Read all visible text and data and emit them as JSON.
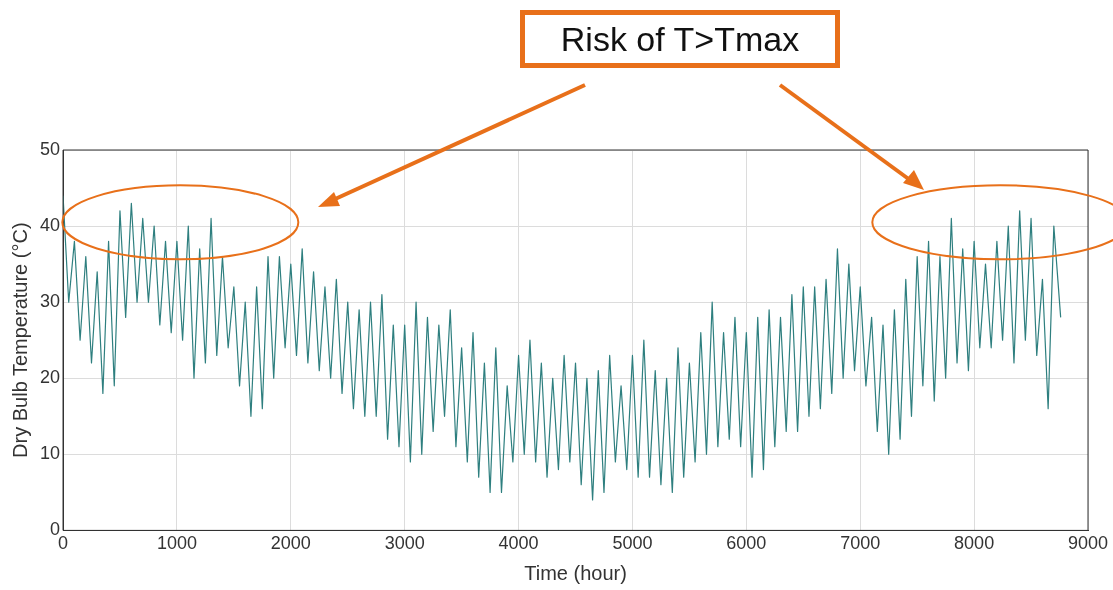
{
  "chart_data": {
    "type": "line",
    "xlabel": "Time (hour)",
    "ylabel": "Dry Bulb Temperature (°C)",
    "annotations": [
      "Risk of T>Tmax"
    ],
    "xlim": [
      0,
      9000
    ],
    "xticks": [
      0,
      1000,
      2000,
      3000,
      4000,
      5000,
      6000,
      7000,
      8000,
      9000
    ],
    "ylim": [
      0,
      50
    ],
    "yticks": [
      0,
      10,
      20,
      30,
      40,
      50
    ],
    "grid": true,
    "marker": "none",
    "line_style": "solid",
    "x": [
      0,
      50,
      100,
      150,
      200,
      250,
      300,
      350,
      400,
      450,
      500,
      550,
      600,
      650,
      700,
      750,
      800,
      850,
      900,
      950,
      1000,
      1050,
      1100,
      1150,
      1200,
      1250,
      1300,
      1350,
      1400,
      1450,
      1500,
      1550,
      1600,
      1650,
      1700,
      1750,
      1800,
      1850,
      1900,
      1950,
      2000,
      2050,
      2100,
      2150,
      2200,
      2250,
      2300,
      2350,
      2400,
      2450,
      2500,
      2550,
      2600,
      2650,
      2700,
      2750,
      2800,
      2850,
      2900,
      2950,
      3000,
      3050,
      3100,
      3150,
      3200,
      3250,
      3300,
      3350,
      3400,
      3450,
      3500,
      3550,
      3600,
      3650,
      3700,
      3750,
      3800,
      3850,
      3900,
      3950,
      4000,
      4050,
      4100,
      4150,
      4200,
      4250,
      4300,
      4350,
      4400,
      4450,
      4500,
      4550,
      4600,
      4650,
      4700,
      4750,
      4800,
      4850,
      4900,
      4950,
      5000,
      5050,
      5100,
      5150,
      5200,
      5250,
      5300,
      5350,
      5400,
      5450,
      5500,
      5550,
      5600,
      5650,
      5700,
      5750,
      5800,
      5850,
      5900,
      5950,
      6000,
      6050,
      6100,
      6150,
      6200,
      6250,
      6300,
      6350,
      6400,
      6450,
      6500,
      6550,
      6600,
      6650,
      6700,
      6750,
      6800,
      6850,
      6900,
      6950,
      7000,
      7050,
      7100,
      7150,
      7200,
      7250,
      7300,
      7350,
      7400,
      7450,
      7500,
      7550,
      7600,
      7650,
      7700,
      7750,
      7800,
      7850,
      7900,
      7950,
      8000,
      8050,
      8100,
      8150,
      8200,
      8250,
      8300,
      8350,
      8400,
      8450,
      8500,
      8550,
      8600,
      8650,
      8700,
      8760
    ],
    "series": [
      {
        "color": "#2e7f7f",
        "values": [
          44,
          30,
          38,
          25,
          36,
          22,
          34,
          18,
          38,
          19,
          42,
          28,
          43,
          30,
          41,
          30,
          40,
          27,
          38,
          26,
          38,
          25,
          40,
          20,
          37,
          22,
          41,
          23,
          36,
          24,
          32,
          19,
          30,
          15,
          32,
          16,
          36,
          20,
          36,
          24,
          35,
          23,
          37,
          22,
          34,
          21,
          32,
          20,
          33,
          18,
          30,
          16,
          29,
          15,
          30,
          15,
          31,
          12,
          27,
          11,
          27,
          9,
          30,
          10,
          28,
          13,
          27,
          15,
          29,
          11,
          24,
          9,
          26,
          7,
          22,
          5,
          24,
          5,
          19,
          9,
          23,
          10,
          25,
          9,
          22,
          7,
          20,
          8,
          23,
          9,
          22,
          6,
          20,
          4,
          21,
          5,
          23,
          9,
          19,
          8,
          23,
          7,
          25,
          7,
          21,
          6,
          20,
          5,
          24,
          7,
          22,
          9,
          26,
          10,
          30,
          11,
          26,
          12,
          28,
          11,
          26,
          7,
          28,
          8,
          29,
          11,
          28,
          13,
          31,
          13,
          32,
          15,
          32,
          16,
          33,
          18,
          37,
          20,
          35,
          21,
          32,
          19,
          28,
          13,
          27,
          10,
          29,
          12,
          33,
          15,
          36,
          19,
          38,
          17,
          36,
          20,
          41,
          22,
          37,
          21,
          38,
          24,
          35,
          24,
          38,
          25,
          40,
          22,
          42,
          25,
          41,
          23,
          33,
          16,
          40,
          28
        ]
      }
    ]
  }
}
